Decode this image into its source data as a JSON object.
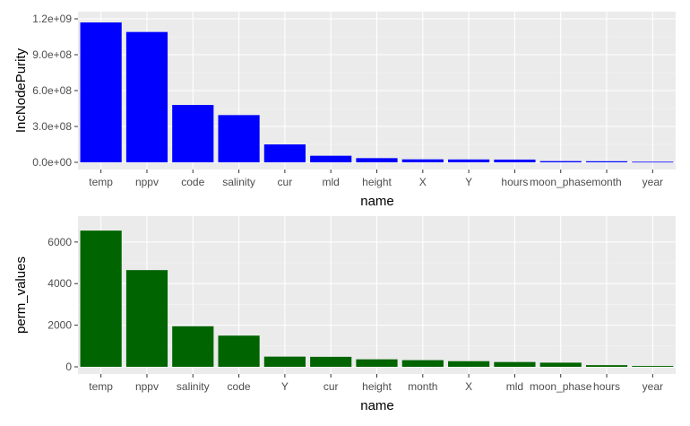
{
  "chart_data": [
    {
      "type": "bar",
      "categories": [
        "temp",
        "nppv",
        "code",
        "salinity",
        "cur",
        "mld",
        "height",
        "X",
        "Y",
        "hours",
        "moon_phase",
        "month",
        "year"
      ],
      "values": [
        1170000000,
        1090000000,
        480000000,
        395000000,
        150000000,
        55000000,
        35000000,
        25000000,
        24000000,
        23000000,
        10000000,
        9000000,
        5000000
      ],
      "xlabel": "name",
      "ylabel": "IncNodePurity",
      "ylim": [
        0,
        1200000000
      ],
      "yticks": [
        0,
        300000000,
        600000000,
        900000000,
        1200000000
      ],
      "ytick_labels": [
        "0.0e+00",
        "3.0e+08",
        "6.0e+08",
        "9.0e+08",
        "1.2e+09"
      ],
      "bar_color": "#0000ff",
      "grid": true
    },
    {
      "type": "bar",
      "categories": [
        "temp",
        "nppv",
        "salinity",
        "code",
        "Y",
        "cur",
        "height",
        "month",
        "X",
        "mld",
        "moon_phase",
        "hours",
        "year"
      ],
      "values": [
        6550,
        4650,
        1950,
        1500,
        490,
        480,
        360,
        320,
        270,
        230,
        200,
        80,
        40
      ],
      "xlabel": "name",
      "ylabel": "perm_values",
      "ylim": [
        0,
        6900
      ],
      "yticks": [
        0,
        2000,
        4000,
        6000
      ],
      "ytick_labels": [
        "0",
        "2000",
        "4000",
        "6000"
      ],
      "bar_color": "#006400",
      "grid": true
    }
  ]
}
